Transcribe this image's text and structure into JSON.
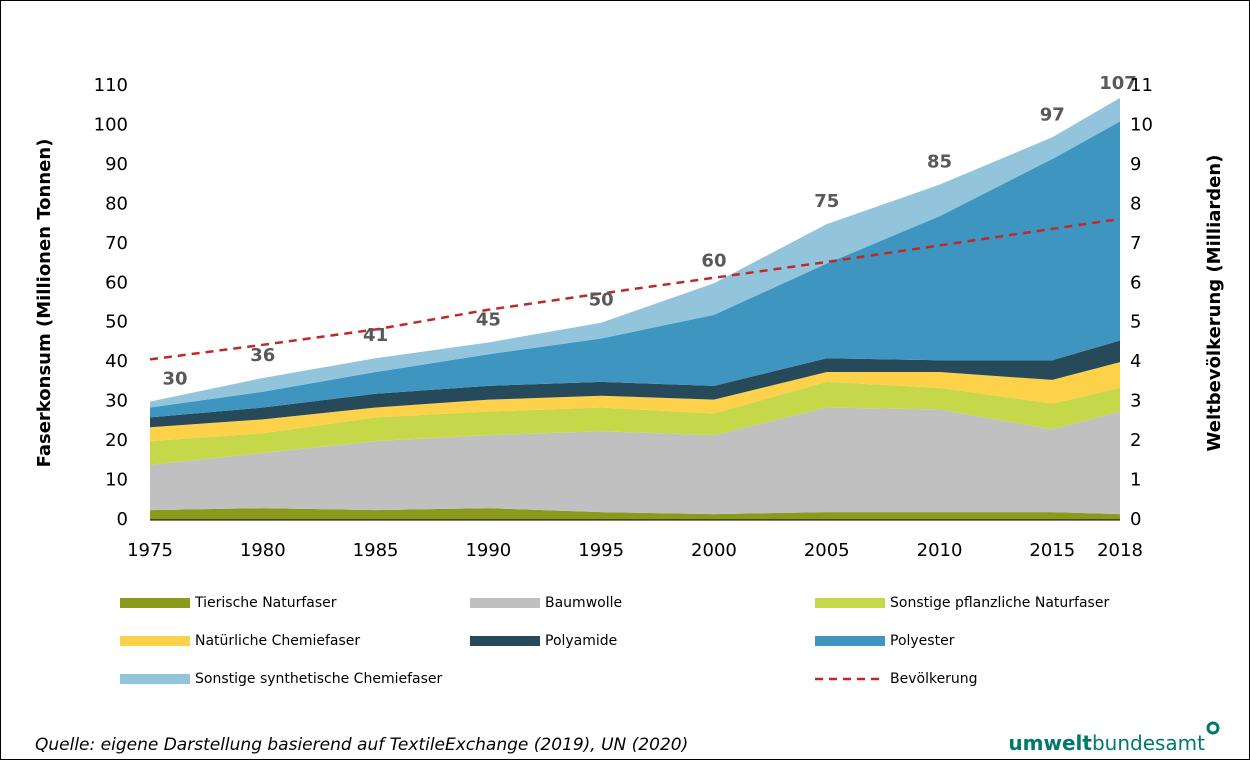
{
  "chart_data": {
    "type": "stacked_area",
    "x": [
      1975,
      1980,
      1985,
      1990,
      1995,
      2000,
      2005,
      2010,
      2015,
      2018
    ],
    "xlim": [
      1975,
      2018
    ],
    "xticks": [
      1975,
      1980,
      1985,
      1990,
      1995,
      2000,
      2005,
      2010,
      2015,
      2018
    ],
    "ylim": [
      0,
      110
    ],
    "yticks": [
      0,
      10,
      20,
      30,
      40,
      50,
      60,
      70,
      80,
      90,
      100,
      110
    ],
    "y2lim": [
      0,
      11
    ],
    "y2ticks": [
      0,
      1,
      2,
      3,
      4,
      5,
      6,
      7,
      8,
      9,
      10,
      11
    ],
    "ylabel": "Faserkonsum (Millionen Tonnen)",
    "y2label": "Weltbevölkerung (Milliarden)",
    "series": [
      {
        "name": "Tierische Naturfaser",
        "color": "#8a9a1b",
        "values": [
          2.5,
          3,
          2.5,
          3,
          2,
          1.5,
          2,
          2,
          2,
          1.5
        ]
      },
      {
        "name": "Baumwolle",
        "color": "#c0c0c0",
        "values": [
          11.5,
          14,
          17.5,
          18.5,
          20.5,
          20,
          26.5,
          26,
          21,
          26
        ]
      },
      {
        "name": "Sonstige pflanzliche Naturfaser",
        "color": "#c5d84a",
        "values": [
          6,
          5,
          6,
          6,
          6,
          5.5,
          6.5,
          5.5,
          6.5,
          6
        ]
      },
      {
        "name": "Natürliche Chemiefaser",
        "color": "#fdd14a",
        "values": [
          3.5,
          3.5,
          2.5,
          3,
          3,
          3.5,
          2.5,
          4,
          6,
          6.5
        ]
      },
      {
        "name": "Polyamide",
        "color": "#264a5a",
        "values": [
          2.5,
          3,
          3.5,
          3.5,
          3.5,
          3.5,
          3.5,
          3,
          5,
          5.5
        ]
      },
      {
        "name": "Polyester",
        "color": "#3e95bf",
        "values": [
          2.5,
          4,
          5.5,
          8,
          11,
          18,
          24,
          36.5,
          51,
          55.5
        ]
      },
      {
        "name": "Sonstige synthetische Chemiefaser",
        "color": "#92c4dc",
        "values": [
          1.5,
          3.5,
          3.5,
          3,
          4,
          8,
          10,
          8,
          5.5,
          6
        ]
      },
      {
        "name": "Bevölkerung",
        "color": "#c0292a",
        "axis": "y2",
        "type": "line",
        "dashed": true,
        "values": [
          4.07,
          4.44,
          4.83,
          5.33,
          5.74,
          6.14,
          6.54,
          6.96,
          7.38,
          7.63
        ]
      }
    ],
    "total_labels": [
      30,
      36,
      41,
      45,
      50,
      60,
      75,
      85,
      97,
      107
    ],
    "source": "Quelle: eigene Darstellung basierend auf TextileExchange (2019), UN (2020)",
    "logo": {
      "bold": "umwelt",
      "rest": "bundesamt"
    }
  }
}
